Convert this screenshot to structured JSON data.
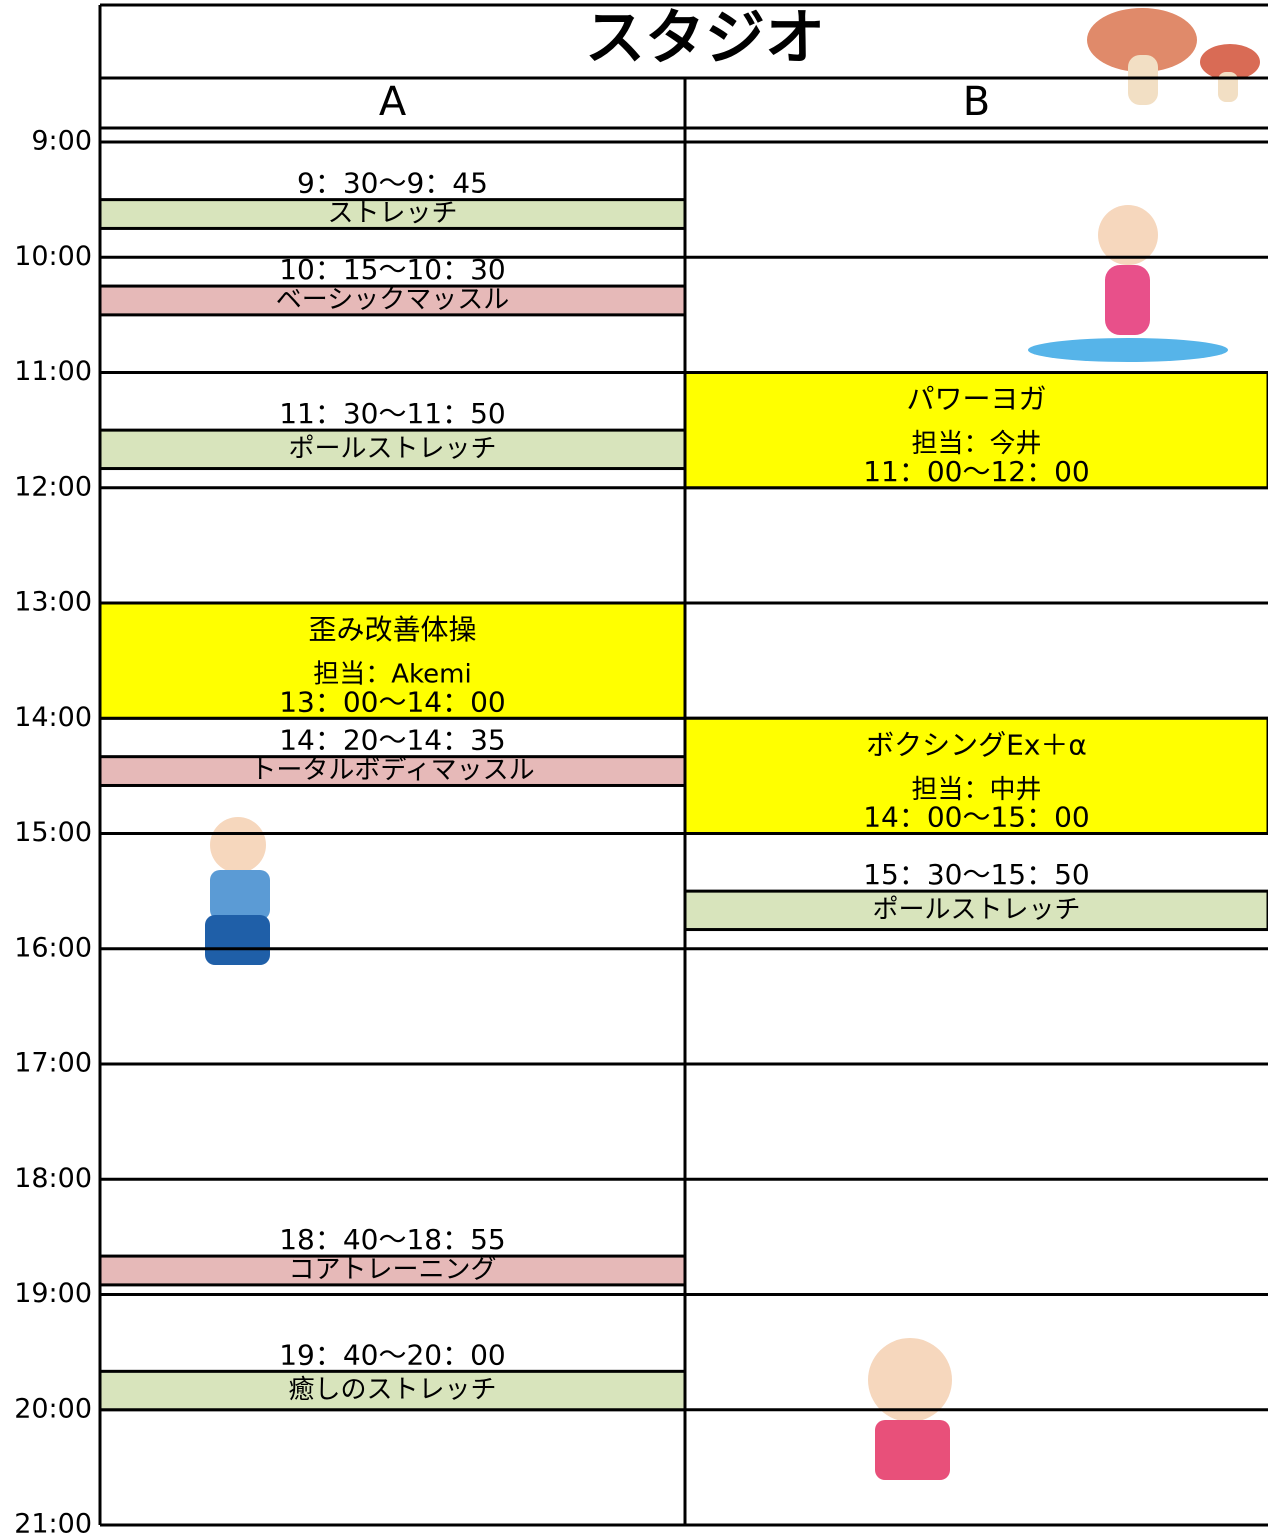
{
  "title": "スタジオ",
  "times": [
    "9:00",
    "10:00",
    "11:00",
    "12:00",
    "13:00",
    "14:00",
    "15:00",
    "16:00",
    "17:00",
    "18:00",
    "19:00",
    "20:00",
    "21:00"
  ],
  "studios": [
    {
      "name": "A",
      "events": [
        {
          "time": "9：30〜9：45",
          "name": "ストレッチ",
          "color": "#d8e4bc"
        },
        {
          "time": "10：15〜10：30",
          "name": "ベーシックマッスル",
          "color": "#e6b9b8"
        },
        {
          "time": "11：30〜11：50",
          "name": "ポールストレッチ",
          "color": "#d8e4bc"
        },
        {
          "time": "13：00〜14：00",
          "name": "歪み改善体操",
          "instructor": "担当：Akemi",
          "color": "#ffff00"
        },
        {
          "time": "14：20〜14：35",
          "name": "トータルボディマッスル",
          "color": "#e6b9b8"
        },
        {
          "time": "18：40〜18：55",
          "name": "コアトレーニング",
          "color": "#e6b9b8"
        },
        {
          "time": "19：40〜20：00",
          "name": "癒しのストレッチ",
          "color": "#d8e4bc"
        }
      ]
    },
    {
      "name": "B",
      "events": [
        {
          "time": "11：00〜12：00",
          "name": "パワーヨガ",
          "instructor": "担当：今井",
          "color": "#ffff00"
        },
        {
          "time": "14：00〜15：00",
          "name": "ボクシングEx＋α",
          "instructor": "担当：中井",
          "color": "#ffff00"
        },
        {
          "time": "15：30〜15：50",
          "name": "ポールストレッチ",
          "color": "#d8e4bc"
        }
      ]
    }
  ]
}
